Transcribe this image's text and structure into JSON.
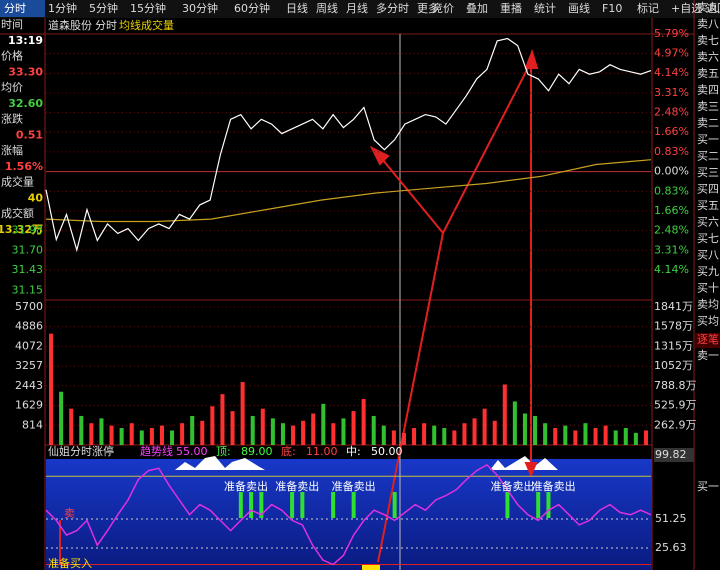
{
  "toolbar": {
    "periods": [
      "分时",
      "1分钟",
      "5分钟",
      "15分钟",
      "30分钟",
      "60分钟",
      "日线",
      "周线",
      "月线",
      "多分时",
      "更多"
    ],
    "tools": [
      "竞价",
      "叠加",
      "重播",
      "统计",
      "画线",
      "F10",
      "标记",
      "+自选",
      "返回"
    ]
  },
  "header": {
    "stock": "道森股份",
    "mode": "分时",
    "avg": "均线",
    "volume": "成交量"
  },
  "info": [
    {
      "label": "时间",
      "value": "13:19",
      "color": "#ffffff"
    },
    {
      "label": "价格",
      "value": "33.30",
      "color": "#ff4040"
    },
    {
      "label": "均价",
      "value": "32.60",
      "color": "#40d040"
    },
    {
      "label": "涨跌",
      "value": "0.51",
      "color": "#ff4040"
    },
    {
      "label": "涨幅",
      "value": "1.56%",
      "color": "#ff4040"
    },
    {
      "label": "成交量",
      "value": "40",
      "color": "#e8d000"
    },
    {
      "label": "成交额",
      "value": "13.32万",
      "color": "#e8d000"
    }
  ],
  "price_chart": {
    "ylim": [
      -4.14,
      5.79
    ],
    "pct_ticks": [
      {
        "value": 5.79,
        "label": "5.79%"
      },
      {
        "value": 4.97,
        "label": "4.97%"
      },
      {
        "value": 4.14,
        "label": "4.14%"
      },
      {
        "value": 3.31,
        "label": "3.31%"
      },
      {
        "value": 2.48,
        "label": "2.48%"
      },
      {
        "value": 1.66,
        "label": "1.66%"
      },
      {
        "value": 0.83,
        "label": "0.83%"
      },
      {
        "value": 0,
        "label": "0.00%"
      },
      {
        "value": -0.83,
        "label": "0.83%"
      },
      {
        "value": -1.66,
        "label": "1.66%"
      },
      {
        "value": -2.48,
        "label": "2.48%"
      },
      {
        "value": -3.31,
        "label": "3.31%"
      },
      {
        "value": -4.14,
        "label": "4.14%"
      }
    ],
    "price_ticks": [
      {
        "value": -2.48,
        "label": "31.98"
      },
      {
        "value": -3.31,
        "label": "31.70"
      },
      {
        "value": -4.14,
        "label": "31.43"
      },
      {
        "value": -5.0,
        "label": "31.15"
      }
    ],
    "price": [
      -0.76,
      -2.86,
      -1.8,
      -3.3,
      -1.6,
      -2.9,
      -2.2,
      -2.6,
      -2.4,
      -2.9,
      -2.4,
      -2.2,
      -2.4,
      -1.8,
      -2.0,
      -1.4,
      -1.2,
      0.7,
      2.2,
      2.4,
      1.8,
      2.2,
      2.0,
      1.6,
      1.8,
      2.0,
      2.2,
      1.8,
      2.4,
      1.85,
      2.2,
      2.7,
      1.34,
      0.92,
      1.34,
      2.0,
      2.2,
      2.4,
      2.3,
      2.0,
      2.6,
      3.2,
      3.9,
      4.3,
      5.5,
      5.6,
      5.3,
      4.1,
      3.9,
      3.4,
      4.1,
      3.7,
      4.3,
      4.1,
      4.2,
      4.5,
      4.3,
      4.2,
      4.1,
      4.25
    ],
    "avg": [
      -2.0,
      -2.1,
      -2.1,
      -2.0,
      -1.6,
      -1.2,
      -0.9,
      -0.7,
      -0.5,
      -0.2,
      0.3,
      0.5
    ]
  },
  "volume_chart": {
    "ylim": [
      0,
      5700
    ],
    "ticks": [
      5700,
      4886,
      4072,
      3257,
      2443,
      1629,
      814
    ],
    "amount_ticks": [
      {
        "value": 5700,
        "label": "1841万"
      },
      {
        "value": 4886,
        "label": "1578万"
      },
      {
        "value": 4072,
        "label": "1315万"
      },
      {
        "value": 3257,
        "label": "1052万"
      },
      {
        "value": 2443,
        "label": "788.8万"
      },
      {
        "value": 1629,
        "label": "525.9万"
      },
      {
        "value": 814,
        "label": "262.9万"
      }
    ],
    "values": [
      4600,
      2200,
      1500,
      1200,
      900,
      1100,
      800,
      700,
      900,
      600,
      700,
      800,
      600,
      900,
      1200,
      1000,
      1600,
      2100,
      1400,
      2600,
      1200,
      1500,
      1100,
      900,
      800,
      1000,
      1300,
      1700,
      900,
      1100,
      1400,
      1900,
      1200,
      800,
      600,
      500,
      700,
      900,
      800,
      700,
      600,
      900,
      1100,
      1500,
      1000,
      2500,
      1800,
      1300,
      1200,
      900,
      700,
      800,
      600,
      900,
      700,
      800,
      600,
      700,
      500,
      600
    ]
  },
  "indicator": {
    "name": "仙姐分时涨停",
    "params": [
      {
        "name": "趋势线",
        "value": "55.00",
        "color": "#ff40ff"
      },
      {
        "name": "顶:",
        "value": "89.00",
        "color": "#40ff40"
      },
      {
        "name": "底:",
        "value": "11.00",
        "color": "#ff4040"
      },
      {
        "name": "中:",
        "value": "50.00",
        "color": "#ffffff"
      }
    ],
    "ticks": [
      {
        "value": 99.82,
        "label": "99.82"
      },
      {
        "value": 51.25,
        "label": "51.25"
      },
      {
        "value": 25.63,
        "label": "25.63"
      }
    ],
    "values": [
      59,
      50,
      37,
      41,
      50,
      28,
      41,
      55,
      68,
      86,
      94,
      96,
      81,
      68,
      55,
      64,
      59,
      50,
      41,
      50,
      59,
      55,
      64,
      59,
      50,
      46,
      28,
      15,
      11,
      19,
      37,
      50,
      59,
      55,
      50,
      57,
      64,
      59,
      68,
      72,
      77,
      86,
      94,
      99,
      90,
      77,
      64,
      55,
      50,
      59,
      64,
      55,
      46,
      50,
      59,
      64,
      57,
      55,
      59,
      55
    ],
    "signal_bars": [
      19,
      20,
      21,
      24,
      25,
      28,
      30,
      34,
      45,
      48,
      49
    ],
    "sell_labels": [
      {
        "text": "准备卖出",
        "index": 19.5
      },
      {
        "text": "准备卖出",
        "index": 24.5
      },
      {
        "text": "准备卖出",
        "index": 30
      },
      {
        "text": "准备卖出",
        "index": 45.5
      },
      {
        "text": "准备卖出",
        "index": 49.5
      }
    ],
    "buy_label": "准备买入",
    "sell_mark": "卖"
  },
  "order_book": [
    "卖九",
    "卖八",
    "卖七",
    "卖六",
    "卖五",
    "卖四",
    "卖三",
    "卖二",
    "买一",
    "买二",
    "买三",
    "买四",
    "买五",
    "买六",
    "买七",
    "买八",
    "买九",
    "买十",
    "卖均",
    "买均"
  ],
  "tick_panel": {
    "title": "逐笔",
    "sell": "卖一",
    "buy": "买一"
  }
}
